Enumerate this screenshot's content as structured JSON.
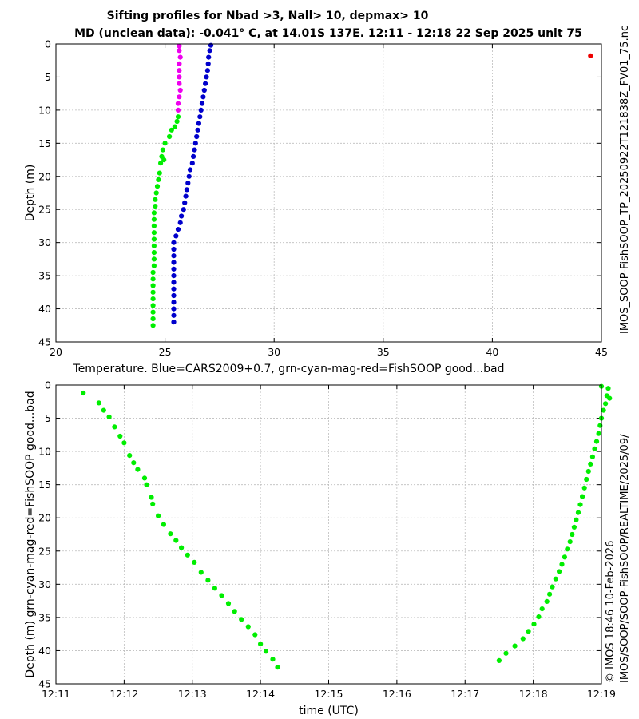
{
  "figure": {
    "title_line1": "Sifting profiles for Nbad >3, Nall> 10, depmax> 10",
    "title_line2": "MD (unclean data): -0.041° C, at 14.01S 137E. 12:11 - 12:18 22 Sep 2025 unit 75",
    "side_label_file": "IMOS_SOOP-FishSOOP_TP_20250922T121838Z_FV01_75.nc",
    "side_label_credit": "© IMOS 18:46 10-Feb-2026",
    "side_label_path": "IMOS/SOOP/SOOP-FishSOOP/REALTIME/2025/09/"
  },
  "chart_data": [
    {
      "type": "scatter",
      "title": "",
      "xlabel": "Temperature. Blue=CARS2009+0.7, grn-cyan-mag-red=FishSOOP good...bad",
      "ylabel": "Depth (m)",
      "xlim": [
        20,
        45
      ],
      "ylim": [
        45,
        0
      ],
      "y_inverted": true,
      "xticks": [
        "20",
        "25",
        "30",
        "35",
        "40",
        "45"
      ],
      "yticks": [
        "0",
        "5",
        "10",
        "15",
        "20",
        "25",
        "30",
        "35",
        "40",
        "45"
      ],
      "grid": true,
      "colors": {
        "blue": "#0000cc",
        "green": "#00ee00",
        "magenta": "#ee00ee",
        "red": "#ee0000"
      },
      "series": [
        {
          "color": "blue",
          "points": [
            [
              27.1,
              0.2
            ],
            [
              27.05,
              1.0
            ],
            [
              27.0,
              2.0
            ],
            [
              26.98,
              3.0
            ],
            [
              26.95,
              4.0
            ],
            [
              26.9,
              5.0
            ],
            [
              26.85,
              6.0
            ],
            [
              26.8,
              7.0
            ],
            [
              26.75,
              8.0
            ],
            [
              26.7,
              9.0
            ],
            [
              26.65,
              10.0
            ],
            [
              26.6,
              11.0
            ],
            [
              26.55,
              12.0
            ],
            [
              26.5,
              13.0
            ],
            [
              26.45,
              14.0
            ],
            [
              26.4,
              15.0
            ],
            [
              26.35,
              16.0
            ],
            [
              26.3,
              17.0
            ],
            [
              26.25,
              18.0
            ],
            [
              26.15,
              19.0
            ],
            [
              26.1,
              20.0
            ],
            [
              26.05,
              21.0
            ],
            [
              26.0,
              22.0
            ],
            [
              25.95,
              23.0
            ],
            [
              25.9,
              24.0
            ],
            [
              25.85,
              25.0
            ],
            [
              25.75,
              26.0
            ],
            [
              25.7,
              27.0
            ],
            [
              25.6,
              28.0
            ],
            [
              25.5,
              29.0
            ],
            [
              25.4,
              30.0
            ],
            [
              25.4,
              31.0
            ],
            [
              25.4,
              32.0
            ],
            [
              25.4,
              33.0
            ],
            [
              25.4,
              34.0
            ],
            [
              25.4,
              35.0
            ],
            [
              25.4,
              36.0
            ],
            [
              25.4,
              37.0
            ],
            [
              25.4,
              38.0
            ],
            [
              25.4,
              39.0
            ],
            [
              25.4,
              40.0
            ],
            [
              25.4,
              41.0
            ],
            [
              25.4,
              42.0
            ]
          ]
        },
        {
          "color": "magenta",
          "points": [
            [
              25.65,
              0.3
            ],
            [
              25.65,
              1.0
            ],
            [
              25.7,
              2.0
            ],
            [
              25.65,
              3.0
            ],
            [
              25.65,
              4.0
            ],
            [
              25.65,
              5.0
            ],
            [
              25.65,
              6.0
            ],
            [
              25.7,
              7.0
            ],
            [
              25.65,
              8.0
            ],
            [
              25.6,
              9.0
            ],
            [
              25.6,
              10.0
            ]
          ]
        },
        {
          "color": "green",
          "points": [
            [
              25.6,
              11.0
            ],
            [
              25.55,
              11.7
            ],
            [
              25.45,
              12.5
            ],
            [
              25.3,
              13.0
            ],
            [
              25.2,
              14.0
            ],
            [
              25.0,
              15.0
            ],
            [
              24.9,
              16.0
            ],
            [
              24.85,
              17.0
            ],
            [
              24.95,
              17.5
            ],
            [
              24.8,
              18.0
            ],
            [
              24.75,
              19.5
            ],
            [
              24.7,
              20.5
            ],
            [
              24.65,
              21.5
            ],
            [
              24.6,
              22.5
            ],
            [
              24.55,
              23.5
            ],
            [
              24.55,
              24.5
            ],
            [
              24.5,
              25.5
            ],
            [
              24.5,
              26.5
            ],
            [
              24.5,
              27.5
            ],
            [
              24.5,
              28.5
            ],
            [
              24.5,
              29.5
            ],
            [
              24.5,
              30.5
            ],
            [
              24.5,
              31.5
            ],
            [
              24.5,
              32.5
            ],
            [
              24.5,
              33.5
            ],
            [
              24.45,
              34.5
            ],
            [
              24.45,
              35.5
            ],
            [
              24.45,
              36.5
            ],
            [
              24.45,
              37.5
            ],
            [
              24.45,
              38.5
            ],
            [
              24.45,
              39.5
            ],
            [
              24.45,
              40.5
            ],
            [
              24.45,
              41.5
            ],
            [
              24.45,
              42.5
            ]
          ]
        },
        {
          "color": "red",
          "points": [
            [
              44.5,
              1.8
            ]
          ]
        }
      ]
    },
    {
      "type": "scatter",
      "title": "",
      "xlabel": "time (UTC)",
      "ylabel": "Depth (m) grn-cyan-mag-red=FishSOOP good...bad",
      "xlim": [
        0,
        8
      ],
      "ylim": [
        45,
        0
      ],
      "y_inverted": true,
      "xticks": [
        "12:11",
        "12:12",
        "12:13",
        "12:14",
        "12:15",
        "12:16",
        "12:17",
        "12:18",
        "12:19"
      ],
      "yticks": [
        "0",
        "5",
        "10",
        "15",
        "20",
        "25",
        "30",
        "35",
        "40",
        "45"
      ],
      "grid": true,
      "series": [
        {
          "color": "green",
          "x_unit": "minutes after 12:11 UTC",
          "points": [
            [
              0.4,
              1.2
            ],
            [
              0.63,
              2.7
            ],
            [
              0.7,
              3.8
            ],
            [
              0.78,
              4.8
            ],
            [
              0.86,
              6.3
            ],
            [
              0.94,
              7.7
            ],
            [
              1.0,
              8.7
            ],
            [
              1.08,
              10.6
            ],
            [
              1.14,
              11.7
            ],
            [
              1.2,
              12.7
            ],
            [
              1.3,
              14.0
            ],
            [
              1.33,
              15.0
            ],
            [
              1.4,
              16.9
            ],
            [
              1.42,
              17.9
            ],
            [
              1.5,
              19.7
            ],
            [
              1.58,
              21.0
            ],
            [
              1.68,
              22.4
            ],
            [
              1.76,
              23.4
            ],
            [
              1.84,
              24.5
            ],
            [
              1.93,
              25.6
            ],
            [
              2.03,
              26.7
            ],
            [
              2.13,
              28.2
            ],
            [
              2.23,
              29.4
            ],
            [
              2.33,
              30.6
            ],
            [
              2.43,
              31.7
            ],
            [
              2.53,
              32.9
            ],
            [
              2.62,
              34.1
            ],
            [
              2.72,
              35.3
            ],
            [
              2.82,
              36.4
            ],
            [
              2.92,
              37.6
            ],
            [
              3.0,
              39.0
            ],
            [
              3.08,
              40.1
            ],
            [
              3.18,
              41.3
            ],
            [
              3.25,
              42.5
            ],
            [
              6.5,
              41.5
            ],
            [
              6.6,
              40.4
            ],
            [
              6.73,
              39.3
            ],
            [
              6.85,
              38.2
            ],
            [
              6.93,
              37.1
            ],
            [
              7.01,
              36.0
            ],
            [
              7.08,
              34.9
            ],
            [
              7.13,
              33.7
            ],
            [
              7.2,
              32.6
            ],
            [
              7.24,
              31.5
            ],
            [
              7.28,
              30.4
            ],
            [
              7.33,
              29.2
            ],
            [
              7.38,
              28.1
            ],
            [
              7.42,
              27.0
            ],
            [
              7.46,
              25.9
            ],
            [
              7.5,
              24.7
            ],
            [
              7.54,
              23.6
            ],
            [
              7.57,
              22.5
            ],
            [
              7.6,
              21.4
            ],
            [
              7.63,
              20.3
            ],
            [
              7.66,
              19.2
            ],
            [
              7.69,
              18.0
            ],
            [
              7.72,
              16.8
            ],
            [
              7.75,
              15.5
            ],
            [
              7.78,
              14.2
            ],
            [
              7.81,
              13.0
            ],
            [
              7.84,
              11.9
            ],
            [
              7.87,
              10.8
            ],
            [
              7.9,
              9.6
            ],
            [
              7.93,
              8.5
            ],
            [
              7.96,
              7.3
            ],
            [
              7.98,
              6.1
            ],
            [
              8.0,
              5.0
            ],
            [
              8.03,
              3.8
            ],
            [
              8.06,
              2.8
            ],
            [
              8.08,
              1.6
            ],
            [
              8.1,
              0.5
            ],
            [
              8.0,
              0.2
            ],
            [
              8.12,
              2.0
            ]
          ]
        }
      ]
    }
  ]
}
